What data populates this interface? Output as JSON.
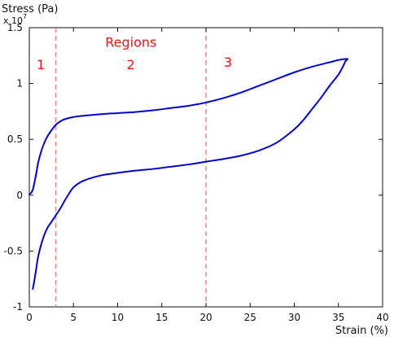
{
  "chart_data": {
    "type": "line",
    "title": "",
    "xlabel": "Strain (%)",
    "ylabel": "Stress (Pa)",
    "y_scale_label": "x 10",
    "y_scale_exponent": "7",
    "xlim": [
      0,
      40
    ],
    "ylim": [
      -1,
      1.5
    ],
    "x_ticks": [
      0,
      5,
      10,
      15,
      20,
      25,
      30,
      35,
      40
    ],
    "y_ticks": [
      -1,
      -0.5,
      0,
      0.5,
      1,
      1.5
    ],
    "x_tick_labels": [
      "0",
      "5",
      "10",
      "15",
      "20",
      "25",
      "30",
      "35",
      "40"
    ],
    "y_tick_labels": [
      "-1",
      "-0.5",
      "0",
      "0.5",
      "1",
      "1.5"
    ],
    "grid": false,
    "series": [
      {
        "x": [
          0,
          0.2,
          0.4,
          0.6,
          0.8,
          1,
          1.3,
          1.6,
          2,
          2.5,
          3,
          3.5,
          4,
          5,
          6,
          8,
          10,
          12,
          14,
          16,
          18,
          20,
          22,
          24,
          26,
          28,
          30,
          32,
          34,
          35,
          36,
          35.8,
          35.5,
          35,
          34,
          33,
          32,
          31,
          30,
          28,
          26,
          24,
          22,
          20,
          18,
          16,
          14,
          12,
          10,
          8,
          6,
          5,
          4.5,
          4,
          3.5,
          3,
          2.5,
          2,
          1.5,
          1,
          0.8,
          0.6,
          0.4
        ],
        "values": [
          0.01,
          0.02,
          0.05,
          0.12,
          0.2,
          0.29,
          0.38,
          0.45,
          0.52,
          0.58,
          0.63,
          0.66,
          0.68,
          0.7,
          0.71,
          0.725,
          0.735,
          0.745,
          0.76,
          0.78,
          0.8,
          0.83,
          0.87,
          0.92,
          0.98,
          1.04,
          1.1,
          1.15,
          1.19,
          1.21,
          1.22,
          1.2,
          1.15,
          1.08,
          0.98,
          0.87,
          0.77,
          0.67,
          0.59,
          0.47,
          0.4,
          0.355,
          0.325,
          0.3,
          0.275,
          0.255,
          0.235,
          0.22,
          0.2,
          0.175,
          0.125,
          0.07,
          0.015,
          -0.05,
          -0.12,
          -0.18,
          -0.24,
          -0.3,
          -0.4,
          -0.55,
          -0.65,
          -0.75,
          -0.84
        ]
      }
    ],
    "vlines": [
      3,
      20
    ],
    "region_annotations": [
      {
        "label": "Regions",
        "x": 11.5,
        "y": 1.33
      },
      {
        "label": "1",
        "x": 1.3,
        "y": 1.13
      },
      {
        "label": "2",
        "x": 11.5,
        "y": 1.13
      },
      {
        "label": "3",
        "x": 22.5,
        "y": 1.15
      }
    ],
    "colors": {
      "curve": "#0000cc",
      "vline": "#f08080",
      "region_text": "#ee1111",
      "axis": "#111111"
    }
  }
}
